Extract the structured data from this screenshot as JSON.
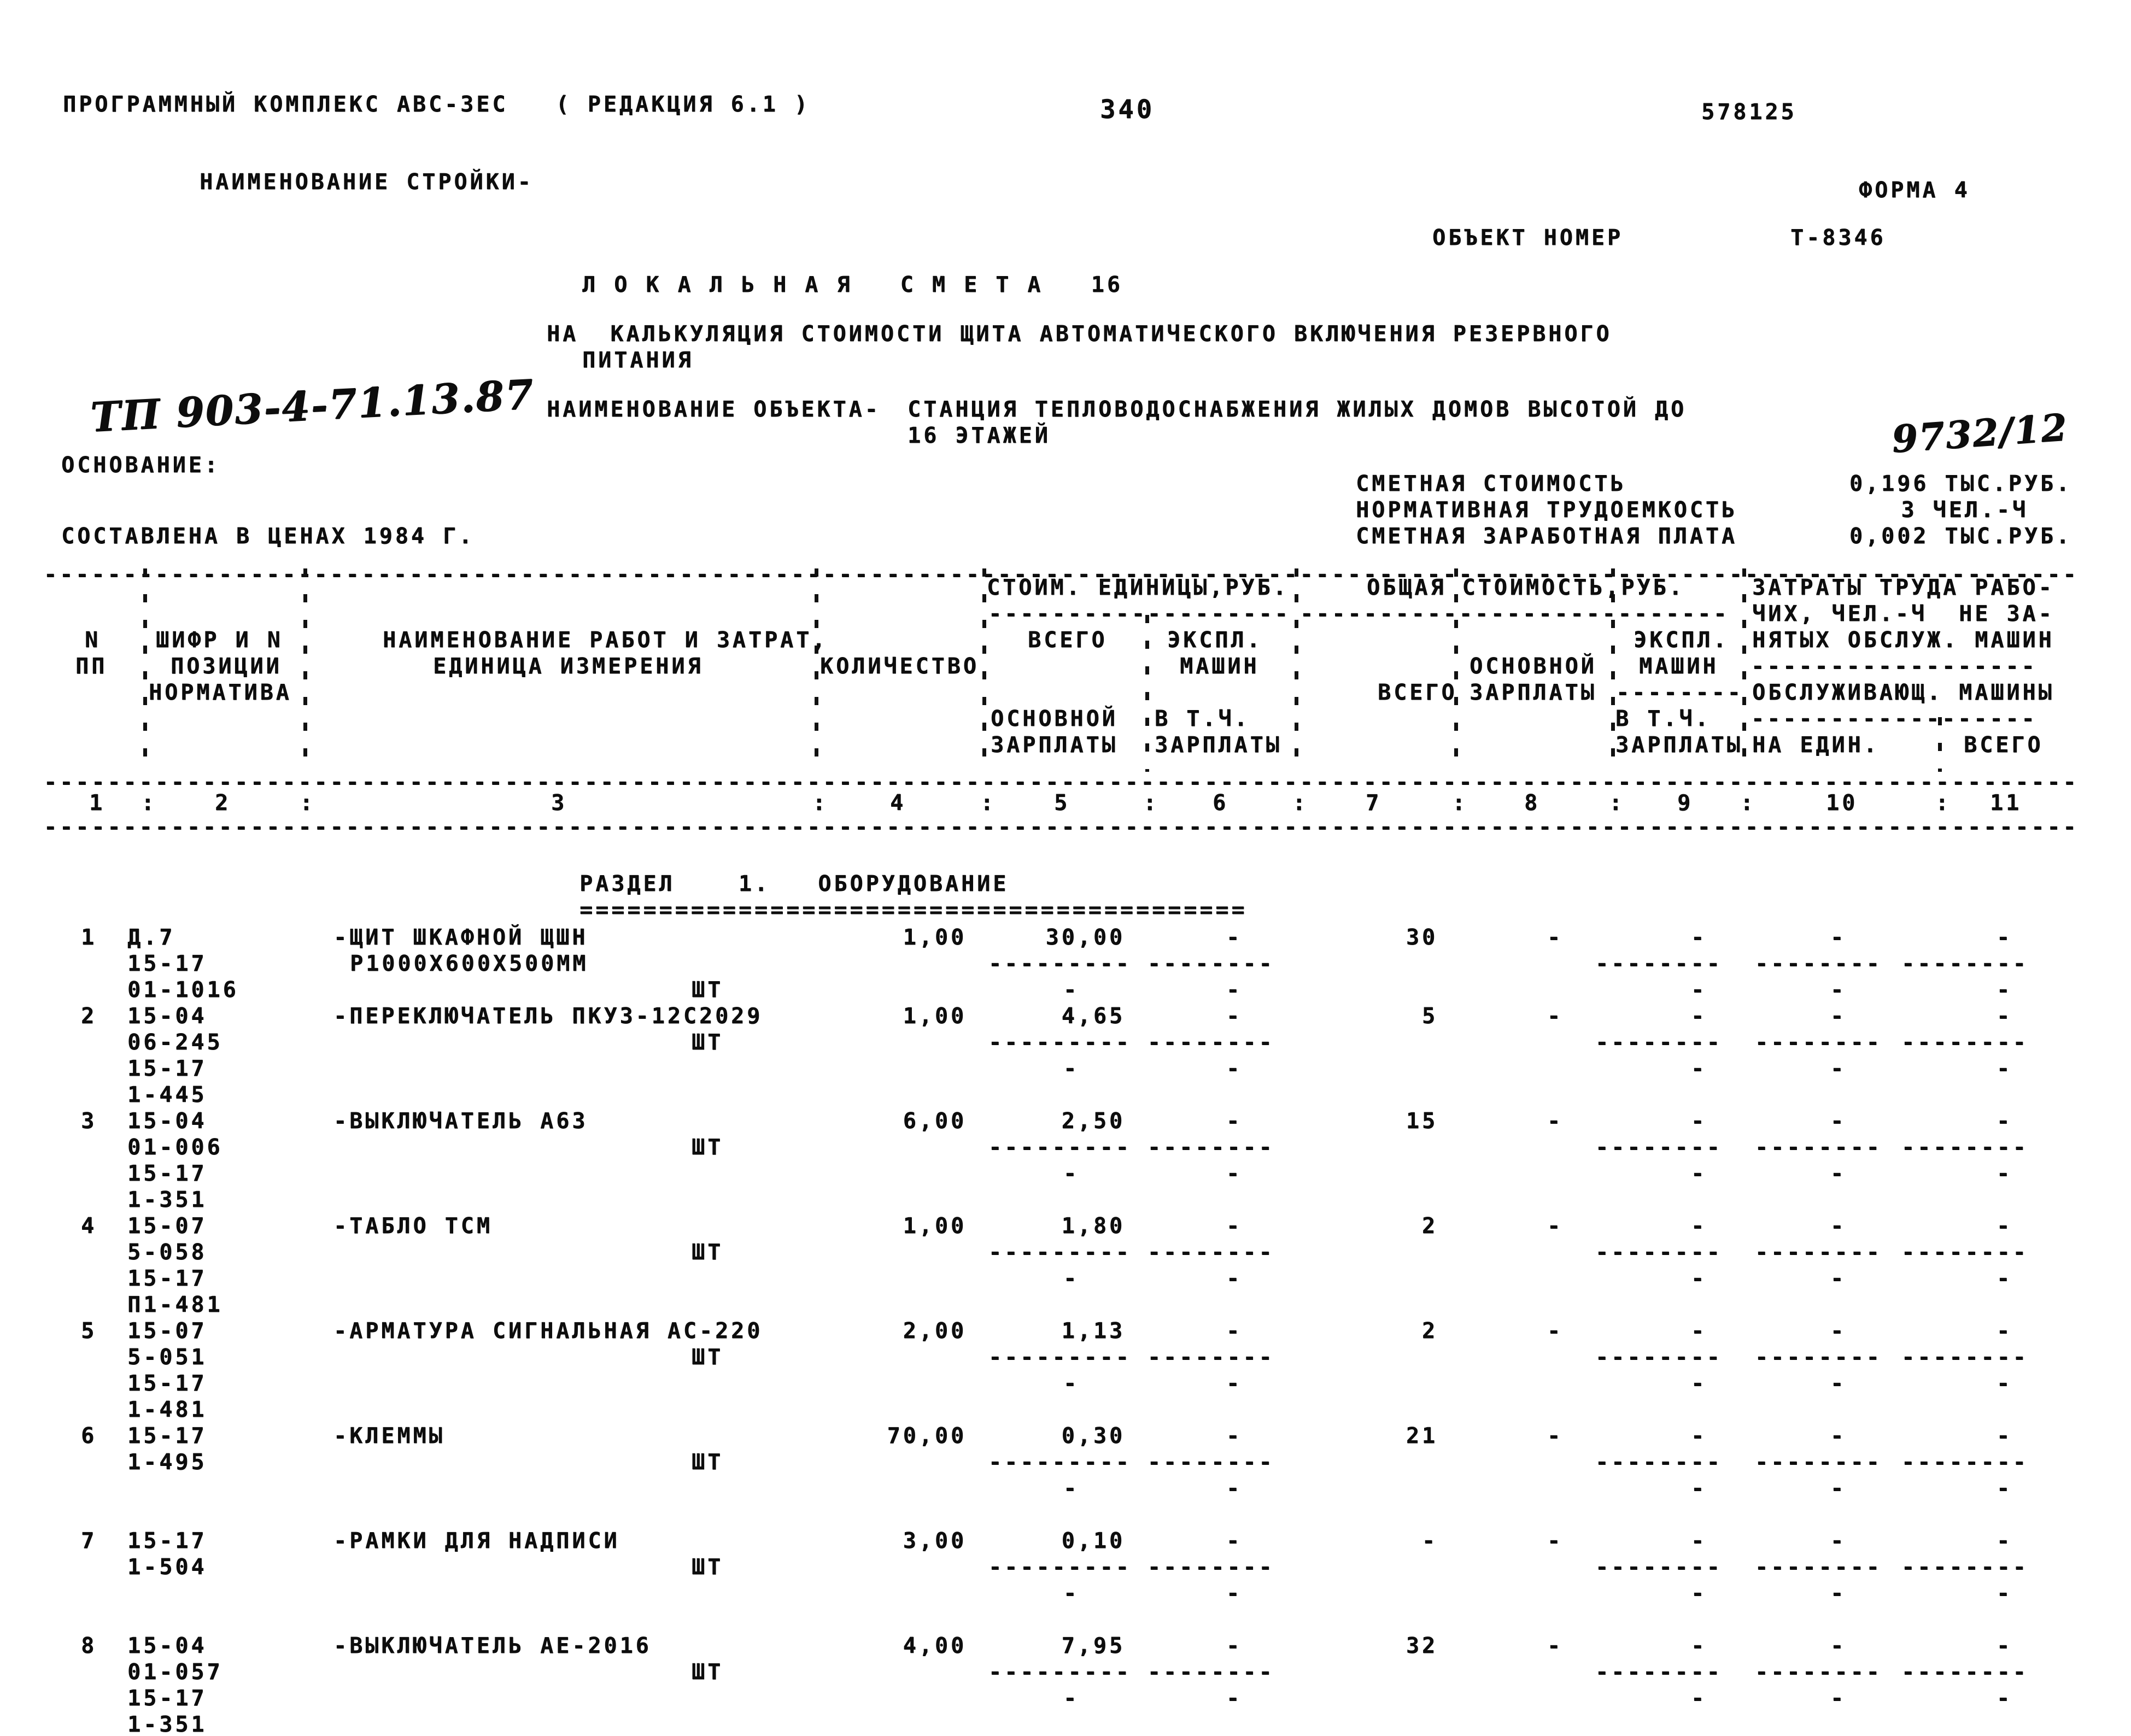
{
  "glyphs": {
    "dash": "-",
    "equal": "=",
    "colon": ":"
  },
  "page": {
    "program_line": "ПРОГРАММНЫЙ КОМПЛЕКС АВС-3ЕС   ( РЕДАКЦИЯ 6.1 )",
    "page_number": "340",
    "doc_code": "578125",
    "stroika_label": "НАИМЕНОВАНИЕ СТРОЙКИ-",
    "forma": "ФОРМА 4",
    "object_number_label": "ОБЪЕКТ НОМЕР",
    "object_number": "Т-8346",
    "title": "Л О К А Л Ь Н А Я   С М Е Т А   16",
    "subtitle_line1": "НА  КАЛЬКУЛЯЦИЯ СТОИМОСТИ ЩИТА АВТОМАТИЧЕСКОГО ВКЛЮЧЕНИЯ РЕЗЕРВНОГО",
    "subtitle_line2": "ПИТАНИЯ",
    "object_label": "НАИМЕНОВАНИЕ ОБЪЕКТА-",
    "object_line1": "СТАНЦИЯ ТЕПЛОВОДОСНАБЖЕНИЯ ЖИЛЫХ ДОМОВ ВЫСОТОЙ ДО",
    "object_line2": "16 ЭТАЖЕЙ",
    "handwritten_left": "ТП 903-4-71.13.87",
    "handwritten_right": "9732/12",
    "osnovanie_label": "ОСНОВАНИЕ:",
    "prices_line": "СОСТАВЛЕНА В ЦЕНАХ 1984 Г.",
    "summary": [
      {
        "label": "СМЕТНАЯ СТОИМОСТЬ",
        "value": "0,196 ТЫС.РУБ."
      },
      {
        "label": "НОРМАТИВНАЯ ТРУДОЕМКОСТЬ",
        "value": "3 ЧЕЛ.-Ч"
      },
      {
        "label": "СМЕТНАЯ ЗАРАБОТНАЯ ПЛАТА",
        "value": "0,002 ТЫС.РУБ."
      }
    ]
  },
  "table": {
    "header": {
      "col1": [
        "N",
        "ПП"
      ],
      "col2": [
        "ШИФР И N",
        "ПОЗИЦИИ",
        "НОРМАТИВА"
      ],
      "col3": [
        "НАИМЕНОВАНИЕ РАБОТ И ЗАТРАТ,",
        "ЕДИНИЦА ИЗМЕРЕНИЯ"
      ],
      "col4": "КОЛИЧЕСТВО",
      "group56": "СТОИМ. ЕДИНИЦЫ,РУБ.",
      "col5": [
        "ВСЕГО",
        "ОСНОВНОЙ",
        "ЗАРПЛАТЫ"
      ],
      "col6": [
        "ЭКСПЛ.",
        "МАШИН",
        "В Т.Ч.",
        "ЗАРПЛАТЫ"
      ],
      "group79": "ОБЩАЯ СТОИМОСТЬ,РУБ.",
      "col7": "ВСЕГО",
      "col8": [
        "ОСНОВНОЙ",
        "ЗАРПЛАТЫ"
      ],
      "col9": [
        "ЭКСПЛ.",
        "МАШИН",
        "В Т.Ч.",
        "ЗАРПЛАТЫ"
      ],
      "group1011": [
        "ЗАТРАТЫ ТРУДА РАБО-",
        "ЧИХ, ЧЕЛ.-Ч  НЕ ЗА-",
        "НЯТЫХ ОБСЛУЖ. МАШИН",
        "ОБСЛУЖИВАЮЩ. МАШИНЫ"
      ],
      "col10": "НА ЕДИН.",
      "col11": "ВСЕГО"
    },
    "column_numbers": [
      "1",
      "2",
      "3",
      "4",
      "5",
      "6",
      "7",
      "8",
      "9",
      "10",
      "11"
    ],
    "section_title": "РАЗДЕЛ    1.   ОБОРУДОВАНИЕ",
    "rows": [
      {
        "n": "1",
        "codes": [
          "Д.7",
          "15-17",
          "01-1016"
        ],
        "name": [
          "-ЩИТ ШКАФНОЙ ЩШН",
          "Р1000Х600Х500ММ"
        ],
        "unit": "ШТ",
        "unit_line": 3,
        "lines": 3,
        "qty": "1,00",
        "unit_cost": "30,00",
        "unit_cost_mach": "-",
        "total": "30",
        "total_zp": "-",
        "c9": "-",
        "c10": "-",
        "c11": "-"
      },
      {
        "n": "2",
        "codes": [
          "15-04",
          "06-245",
          "15-17",
          "1-445"
        ],
        "name": [
          "-ПЕРЕКЛЮЧАТЕЛЬ ПКУ3-12С2029"
        ],
        "unit": "ШТ",
        "unit_line": 2,
        "lines": 4,
        "qty": "1,00",
        "unit_cost": "4,65",
        "unit_cost_mach": "-",
        "total": "5",
        "total_zp": "-",
        "c9": "-",
        "c10": "-",
        "c11": "-"
      },
      {
        "n": "3",
        "codes": [
          "15-04",
          "01-006",
          "15-17",
          "1-351"
        ],
        "name": [
          "-ВЫКЛЮЧАТЕЛЬ А63"
        ],
        "unit": "ШТ",
        "unit_line": 2,
        "lines": 4,
        "qty": "6,00",
        "unit_cost": "2,50",
        "unit_cost_mach": "-",
        "total": "15",
        "total_zp": "-",
        "c9": "-",
        "c10": "-",
        "c11": "-"
      },
      {
        "n": "4",
        "codes": [
          "15-07",
          "5-058",
          "15-17",
          "П1-481"
        ],
        "name": [
          "-ТАБЛО ТСМ"
        ],
        "unit": "ШТ",
        "unit_line": 2,
        "lines": 4,
        "qty": "1,00",
        "unit_cost": "1,80",
        "unit_cost_mach": "-",
        "total": "2",
        "total_zp": "-",
        "c9": "-",
        "c10": "-",
        "c11": "-"
      },
      {
        "n": "5",
        "codes": [
          "15-07",
          "5-051",
          "15-17",
          "1-481"
        ],
        "name": [
          "-АРМАТУРА СИГНАЛЬНАЯ АС-220"
        ],
        "unit": "ШТ",
        "unit_line": 2,
        "lines": 4,
        "qty": "2,00",
        "unit_cost": "1,13",
        "unit_cost_mach": "-",
        "total": "2",
        "total_zp": "-",
        "c9": "-",
        "c10": "-",
        "c11": "-"
      },
      {
        "n": "6",
        "codes": [
          "15-17",
          "1-495"
        ],
        "name": [
          "-КЛЕММЫ"
        ],
        "unit": "ШТ",
        "unit_line": 2,
        "lines": 4,
        "qty": "70,00",
        "unit_cost": "0,30",
        "unit_cost_mach": "-",
        "total": "21",
        "total_zp": "-",
        "c9": "-",
        "c10": "-",
        "c11": "-"
      },
      {
        "n": "7",
        "codes": [
          "15-17",
          "1-504"
        ],
        "name": [
          "-РАМКИ ДЛЯ НАДПИСИ"
        ],
        "unit": "ШТ",
        "unit_line": 2,
        "lines": 4,
        "qty": "3,00",
        "unit_cost": "0,10",
        "unit_cost_mach": "-",
        "total": "-",
        "total_zp": "-",
        "c9": "-",
        "c10": "-",
        "c11": "-"
      },
      {
        "n": "8",
        "codes": [
          "15-04",
          "01-057",
          "15-17",
          "1-351"
        ],
        "name": [
          "-ВЫКЛЮЧАТЕЛЬ АЕ-2016"
        ],
        "unit": "ШТ",
        "unit_line": 2,
        "lines": 4,
        "qty": "4,00",
        "unit_cost": "7,95",
        "unit_cost_mach": "-",
        "total": "32",
        "total_zp": "-",
        "c9": "-",
        "c10": "-",
        "c11": "-"
      }
    ]
  }
}
